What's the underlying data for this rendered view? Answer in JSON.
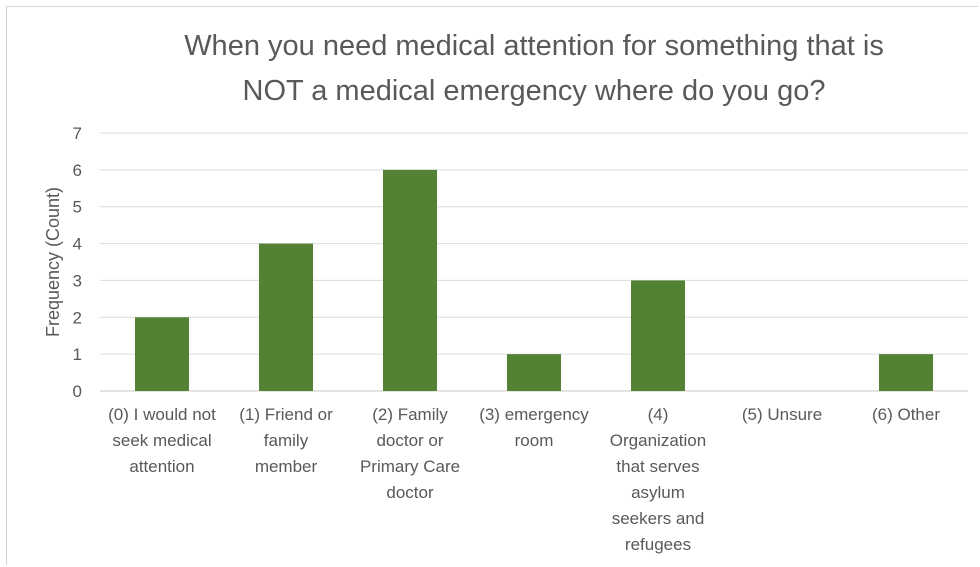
{
  "chart_data": {
    "type": "bar",
    "title_lines": [
      "When you need medical attention for something that is",
      "NOT a medical emergency where do you go?"
    ],
    "ylabel": "Frequency (Count)",
    "xlabel": "",
    "ylim": [
      0,
      7
    ],
    "yticks": [
      "0",
      "1",
      "2",
      "3",
      "4",
      "5",
      "6",
      "7"
    ],
    "grid": true,
    "bar_color": "#548235",
    "categories": [
      {
        "lines": [
          "(0) I would not",
          "seek medical",
          "attention"
        ]
      },
      {
        "lines": [
          "(1) Friend or",
          "family",
          "member"
        ]
      },
      {
        "lines": [
          "(2) Family",
          "doctor or",
          "Primary Care",
          "doctor"
        ]
      },
      {
        "lines": [
          "(3) emergency",
          "room"
        ]
      },
      {
        "lines": [
          "(4)",
          "Organization",
          "that serves",
          "asylum",
          "seekers and",
          "refugees"
        ]
      },
      {
        "lines": [
          "(5) Unsure"
        ]
      },
      {
        "lines": [
          "(6) Other"
        ]
      }
    ],
    "values": [
      2,
      4,
      6,
      1,
      3,
      0,
      1
    ]
  }
}
